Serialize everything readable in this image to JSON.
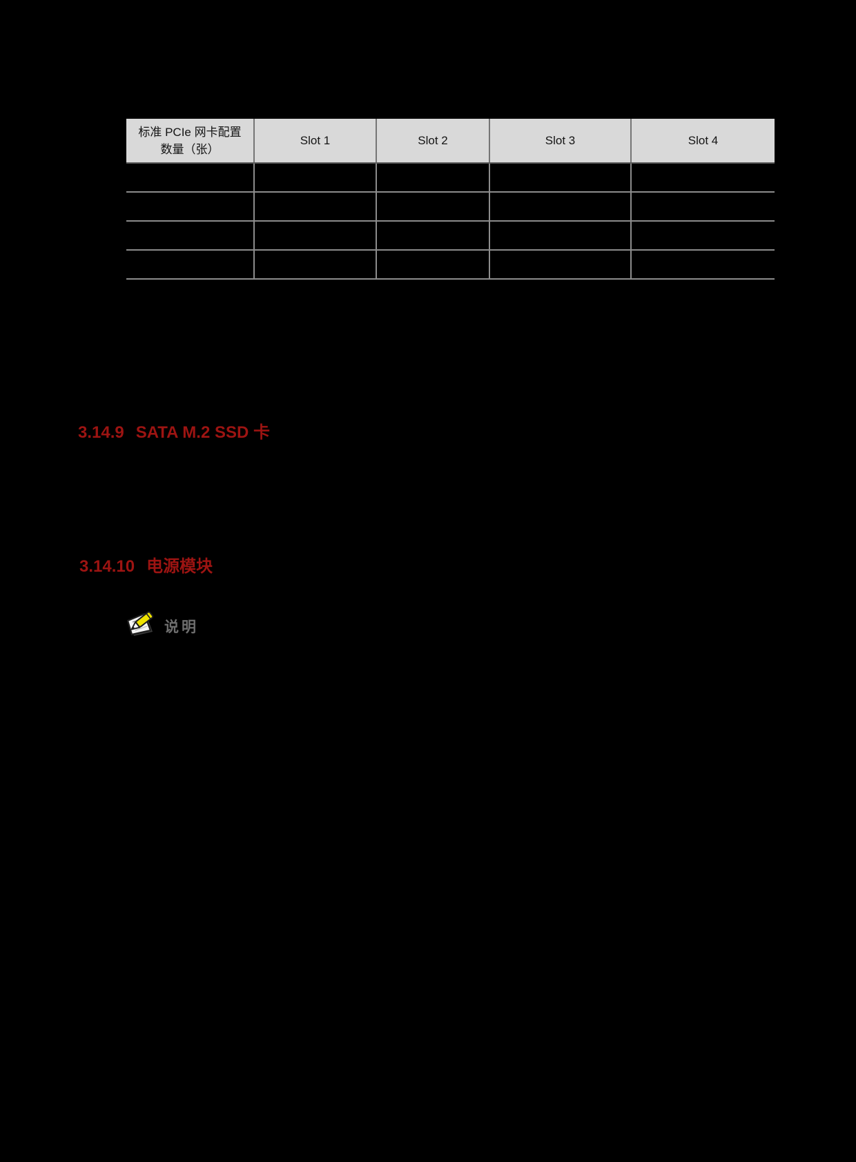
{
  "page": {
    "background": "#000000"
  },
  "colors": {
    "heading_red": "#9d1412",
    "table_header_bg": "#d9d9d9",
    "table_border_gray": "#8c8c8c",
    "note_label_gray": "#6f6f6f",
    "pencil_yellow": "#efe300"
  },
  "table": {
    "header": {
      "col0_line1": "标准 PCIe 网卡配置",
      "col0_line2": "数量（张）",
      "slot1": "Slot 1",
      "slot2": "Slot 2",
      "slot3": "Slot 3",
      "slot4": "Slot 4"
    },
    "rows": [
      [
        "",
        "",
        "",
        "",
        ""
      ],
      [
        "",
        "",
        "",
        "",
        ""
      ],
      [
        "",
        "",
        "",
        "",
        ""
      ],
      [
        "",
        "",
        "",
        "",
        ""
      ]
    ]
  },
  "sections": [
    {
      "number": "3.14.9",
      "title": "SATA M.2 SSD 卡"
    },
    {
      "number": "3.14.10",
      "title": "电源模块"
    }
  ],
  "note": {
    "label": "说明",
    "icon": "note-pencil-icon"
  }
}
